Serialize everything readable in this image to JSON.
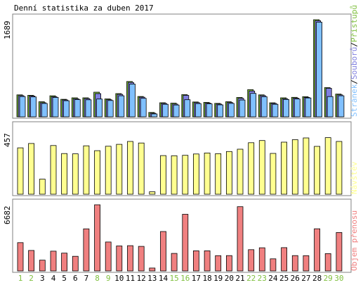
{
  "chart_data": {
    "title": "Denní statistika za duben 2017",
    "type": "bar",
    "x": [
      "1",
      "2",
      "3",
      "4",
      "5",
      "6",
      "7",
      "8",
      "9",
      "10",
      "11",
      "12",
      "13",
      "14",
      "15",
      "16",
      "17",
      "18",
      "19",
      "20",
      "21",
      "22",
      "23",
      "24",
      "25",
      "26",
      "27",
      "28",
      "29",
      "30"
    ],
    "weekend_days": [
      "1",
      "2",
      "8",
      "9",
      "15",
      "16",
      "22",
      "23",
      "29",
      "30"
    ],
    "colors": {
      "frame": "#808080",
      "frame_bg": "#ffffff",
      "pristupu": "#80c040",
      "souboru": "#8080e0",
      "stranek": "#80c0ff",
      "navstev": "#ffff90",
      "objem": "#f08080",
      "weekend_label": "#80c040",
      "weekday_label": "#000000",
      "bar_edge": "#000000"
    },
    "panels": [
      {
        "id": "hits",
        "ymax_label": "1689",
        "ylim": [
          0,
          1689
        ],
        "series": [
          {
            "name": "Přístupů",
            "color": "#80c040",
            "values": [
              382,
              374,
              262,
              366,
              305,
              330,
              330,
              428,
              311,
              404,
              615,
              354,
              76,
              245,
              237,
              385,
              258,
              251,
              234,
              262,
              337,
              472,
              382,
              244,
              330,
              339,
              350,
              1689,
              508,
              395
            ]
          },
          {
            "name": "Souborů",
            "color": "#8080e0",
            "values": [
              368,
              362,
              246,
              350,
              294,
              315,
              317,
              404,
              297,
              390,
              597,
              341,
              62,
              233,
              222,
              373,
              246,
              239,
              222,
              248,
              322,
              449,
              368,
              232,
              315,
              325,
              338,
              1672,
              496,
              382
            ]
          },
          {
            "name": "Stránek",
            "color": "#80c0ff",
            "values": [
              352,
              346,
              232,
              338,
              280,
              300,
              296,
              310,
              284,
              366,
              570,
              322,
              50,
              218,
              206,
              298,
              230,
              225,
              208,
              234,
              292,
              408,
              350,
              218,
              302,
              310,
              328,
              1646,
              352,
              366
            ]
          }
        ],
        "legend": [
          "Stránek",
          "Souborů",
          "Přístupů"
        ],
        "legend_separator": "/"
      },
      {
        "id": "visits",
        "ymax_label": "457",
        "ylim": [
          0,
          457
        ],
        "series": [
          {
            "name": "Návštěv",
            "color": "#ffff90",
            "values": [
              317,
              347,
              103,
              333,
              278,
              276,
              331,
              298,
              328,
              341,
              361,
              350,
              17,
              264,
              263,
              266,
              275,
              282,
              277,
              292,
              308,
              352,
              367,
              279,
              356,
              373,
              385,
              327,
              387,
              361
            ]
          }
        ],
        "legend": [
          "Návštěv"
        ]
      },
      {
        "id": "volume",
        "ymax_label": "6682",
        "ylim": [
          0,
          6682
        ],
        "series": [
          {
            "name": "Objem přenosu",
            "color": "#f08080",
            "values": [
              2860,
              2070,
              1090,
              2000,
              1800,
              1480,
              4250,
              6682,
              2920,
              2520,
              2550,
              2480,
              290,
              3980,
              1770,
              5720,
              2030,
              2030,
              1540,
              1550,
              6490,
              2150,
              2340,
              1220,
              2350,
              1550,
              1540,
              4260,
              1750,
              3880
            ]
          }
        ],
        "legend": [
          "Objem přenosu"
        ]
      }
    ]
  }
}
